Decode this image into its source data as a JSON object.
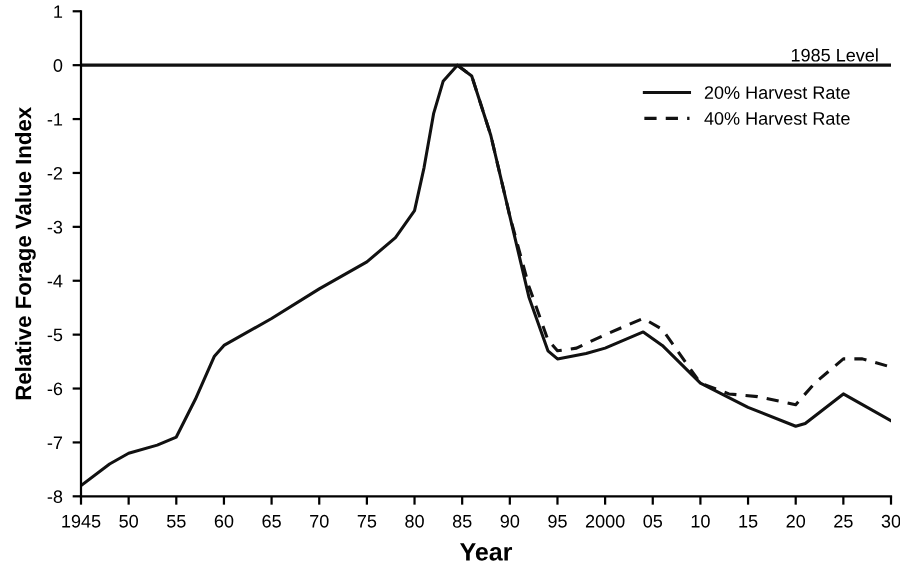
{
  "chart_data": {
    "type": "line",
    "xlabel": "Year",
    "ylabel": "Relative Forage Value Index",
    "xlim": [
      1945,
      2030
    ],
    "ylim": [
      -8,
      1
    ],
    "xticks": [
      1945,
      {
        "value": 1950,
        "label": "50"
      },
      {
        "value": 1955,
        "label": "55"
      },
      {
        "value": 1960,
        "label": "60"
      },
      {
        "value": 1965,
        "label": "65"
      },
      {
        "value": 1970,
        "label": "70"
      },
      {
        "value": 1975,
        "label": "75"
      },
      {
        "value": 1980,
        "label": "80"
      },
      {
        "value": 1985,
        "label": "85"
      },
      {
        "value": 1990,
        "label": "90"
      },
      {
        "value": 1995,
        "label": "95"
      },
      2000,
      {
        "value": 2005,
        "label": "05"
      },
      {
        "value": 2010,
        "label": "10"
      },
      {
        "value": 2015,
        "label": "15"
      },
      {
        "value": 2020,
        "label": "20"
      },
      {
        "value": 2025,
        "label": "25"
      },
      {
        "value": 2030,
        "label": "30"
      }
    ],
    "yticks": [
      1,
      0,
      -1,
      -2,
      -3,
      -4,
      -5,
      -6,
      -7,
      -8
    ],
    "grid": false,
    "legend": "top right",
    "marker": "none",
    "ref_lines": [
      {
        "axis": "y",
        "value": 0,
        "label": "1985 Level",
        "color": "#111111",
        "line_style": "solid"
      }
    ],
    "series": [
      {
        "name": "20% Harvest Rate",
        "color": "#111111",
        "line_style": "solid",
        "x": [
          1945,
          1948,
          1950,
          1953,
          1955,
          1957,
          1959,
          1960,
          1965,
          1970,
          1975,
          1978,
          1980,
          1981,
          1982,
          1983,
          1984.5,
          1986,
          1988,
          1990,
          1992,
          1994,
          1995,
          1998,
          2000,
          2004,
          2006,
          2010,
          2015,
          2020,
          2021,
          2025,
          2030
        ],
        "values": [
          -7.8,
          -7.4,
          -7.2,
          -7.05,
          -6.9,
          -6.2,
          -5.4,
          -5.2,
          -4.7,
          -4.15,
          -3.65,
          -3.2,
          -2.7,
          -1.9,
          -0.9,
          -0.3,
          0,
          -0.2,
          -1.3,
          -2.8,
          -4.3,
          -5.3,
          -5.45,
          -5.35,
          -5.25,
          -4.95,
          -5.2,
          -5.9,
          -6.35,
          -6.7,
          -6.65,
          -6.1,
          -6.6
        ]
      },
      {
        "name": "40% Harvest Rate",
        "color": "#111111",
        "line_style": "dashed",
        "x": [
          1984.5,
          1986,
          1988,
          1990,
          1992,
          1994,
          1995,
          1997,
          2000,
          2004,
          2006,
          2010,
          2013,
          2016,
          2020,
          2022,
          2025,
          2027,
          2030
        ],
        "values": [
          0,
          -0.2,
          -1.3,
          -2.8,
          -4.1,
          -5.1,
          -5.3,
          -5.25,
          -5.0,
          -4.7,
          -4.9,
          -5.9,
          -6.1,
          -6.15,
          -6.3,
          -5.9,
          -5.45,
          -5.45,
          -5.6
        ]
      }
    ]
  }
}
